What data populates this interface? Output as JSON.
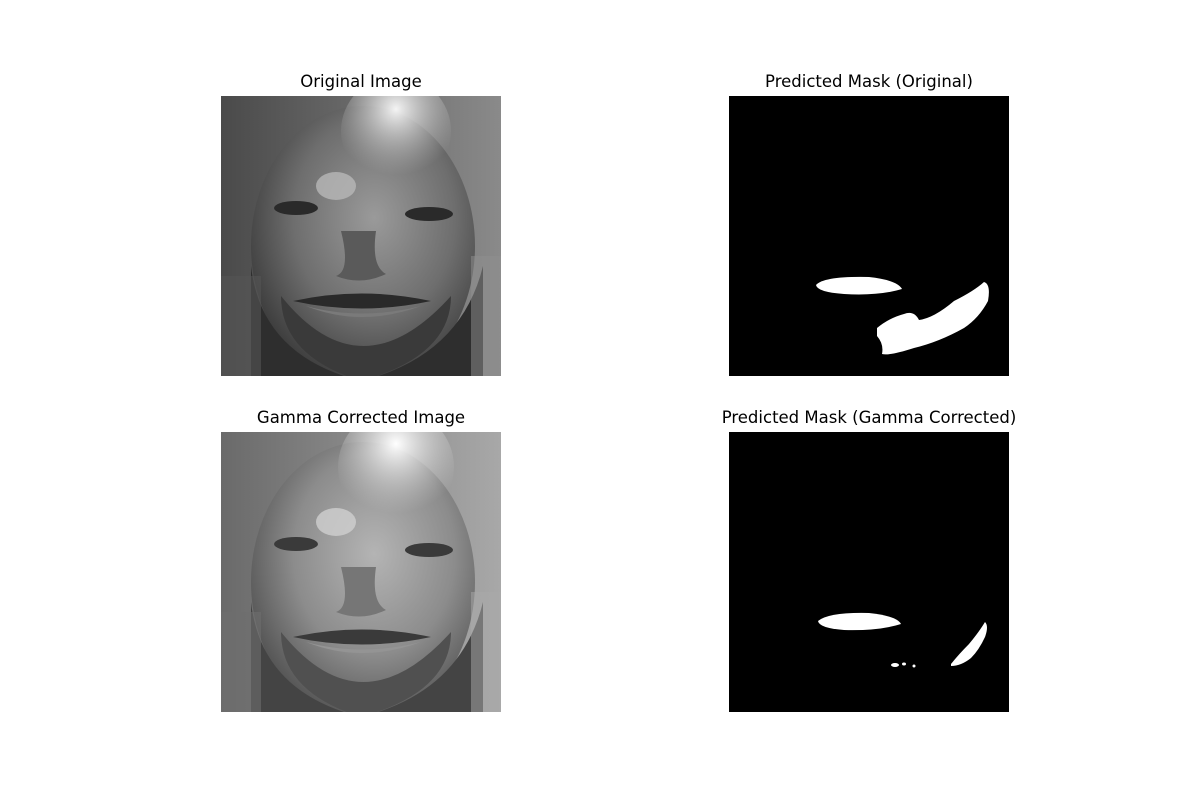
{
  "figure": {
    "panels": [
      {
        "title": "Original Image",
        "content": "grayscale face photo"
      },
      {
        "title": "Predicted Mask (Original)",
        "content": "binary segmentation mask"
      },
      {
        "title": "Gamma Corrected Image",
        "content": "grayscale face photo"
      },
      {
        "title": "Predicted Mask (Gamma Corrected)",
        "content": "binary segmentation mask"
      }
    ]
  },
  "colors": {
    "background": "#ffffff",
    "mask_background": "#000000",
    "mask_foreground": "#ffffff"
  }
}
